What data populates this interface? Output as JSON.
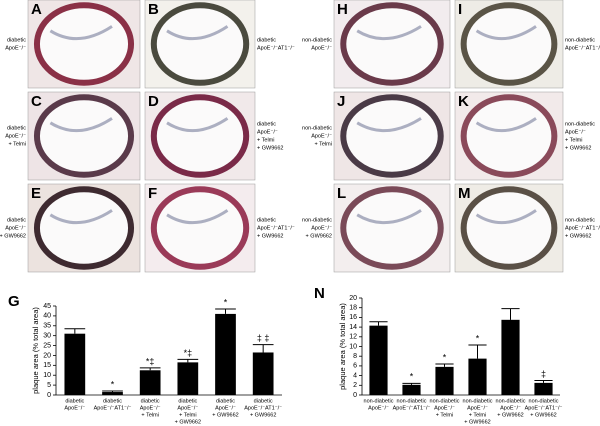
{
  "panels": [
    {
      "letter": "A",
      "caption": [
        "diabetic",
        "ApoE⁻/⁻"
      ]
    },
    {
      "letter": "B",
      "caption": [
        "diabetic",
        "ApoE⁻/⁻AT1⁻/⁻"
      ]
    },
    {
      "letter": "C",
      "caption": [
        "diabetic",
        "ApoE⁻/⁻",
        "+ Telmi"
      ]
    },
    {
      "letter": "D",
      "caption": [
        "diabetic",
        "ApoE⁻/⁻",
        "+ Telmi",
        "+ GW9662"
      ]
    },
    {
      "letter": "E",
      "caption": [
        "diabetic",
        "ApoE⁻/⁻",
        "+ GW9662"
      ]
    },
    {
      "letter": "F",
      "caption": [
        "diabetic",
        "ApoE⁻/⁻AT1⁻/⁻",
        "+ GW9662"
      ]
    },
    {
      "letter": "H",
      "caption": [
        "non-diabetic",
        "ApoE⁻/⁻"
      ]
    },
    {
      "letter": "I",
      "caption": [
        "non-diabetic",
        "ApoE⁻/⁻AT1⁻/⁻"
      ]
    },
    {
      "letter": "J",
      "caption": [
        "non-diabetic",
        "ApoE⁻/⁻",
        "+ Telmi"
      ]
    },
    {
      "letter": "K",
      "caption": [
        "non-diabetic",
        "ApoE⁻/⁻",
        "+ Telmi",
        "+ GW9662"
      ]
    },
    {
      "letter": "L",
      "caption": [
        "non-diabetic",
        "ApoE⁻/⁻",
        "+ GW9662"
      ]
    },
    {
      "letter": "M",
      "caption": [
        "non-diabetic",
        "ApoE⁻/⁻AT1⁻/⁻",
        "+ GW9662"
      ]
    }
  ],
  "chart_data": [
    {
      "type": "bar",
      "title": "G",
      "y_label": "plaque area (% total area)",
      "color": "#000000",
      "categories": [
        [
          "diabetic",
          "ApoE⁻/⁻"
        ],
        [
          "diabetic",
          "ApoE⁻/⁻AT1⁻/⁻"
        ],
        [
          "diabetic",
          "ApoE⁻/⁻",
          "+ Telmi"
        ],
        [
          "diabetic",
          "ApoE⁻/⁻",
          "+ Telmi",
          "+ GW9662"
        ],
        [
          "diabetic",
          "ApoE⁻/⁻",
          "+ GW9662"
        ],
        [
          "diabetic",
          "ApoE⁻/⁻AT1⁻/⁻",
          "+ GW9662"
        ]
      ],
      "values": [
        31,
        1.5,
        12.5,
        16.5,
        41,
        21.5
      ],
      "errors": [
        2.5,
        0.5,
        1.2,
        1.5,
        2.5,
        4
      ],
      "annotations": [
        null,
        "*",
        "*‡",
        "*‡",
        "*",
        "‡ ‡"
      ],
      "ylim": [
        0,
        45
      ],
      "yticks": [
        0,
        5,
        10,
        15,
        20,
        25,
        30,
        35,
        40,
        45
      ]
    },
    {
      "type": "bar",
      "title": "N",
      "y_label": "plaque area (% total area)",
      "color": "#000000",
      "categories": [
        [
          "non-diabetic",
          "ApoE⁻/⁻"
        ],
        [
          "non-diabetic",
          "ApoE⁻/⁻AT1⁻/⁻"
        ],
        [
          "non-diabetic",
          "ApoE⁻/⁻",
          "+ Telmi"
        ],
        [
          "non-diabetic",
          "ApoE⁻/⁻",
          "+ Telmi",
          "+ GW9662"
        ],
        [
          "non-diabetic",
          "ApoE⁻/⁻",
          "+ GW9662"
        ],
        [
          "non-diabetic",
          "ApoE⁻/⁻AT1⁻/⁻",
          "+ GW9662"
        ]
      ],
      "values": [
        14.3,
        2.1,
        5.8,
        7.5,
        15.5,
        2.5
      ],
      "errors": [
        0.8,
        0.3,
        0.6,
        2.8,
        2.3,
        0.5
      ],
      "annotations": [
        null,
        "*",
        "*",
        "*",
        null,
        "‡"
      ],
      "ylim": [
        0,
        20
      ],
      "yticks": [
        0,
        2,
        4,
        6,
        8,
        10,
        12,
        14,
        16,
        18,
        20
      ]
    }
  ]
}
